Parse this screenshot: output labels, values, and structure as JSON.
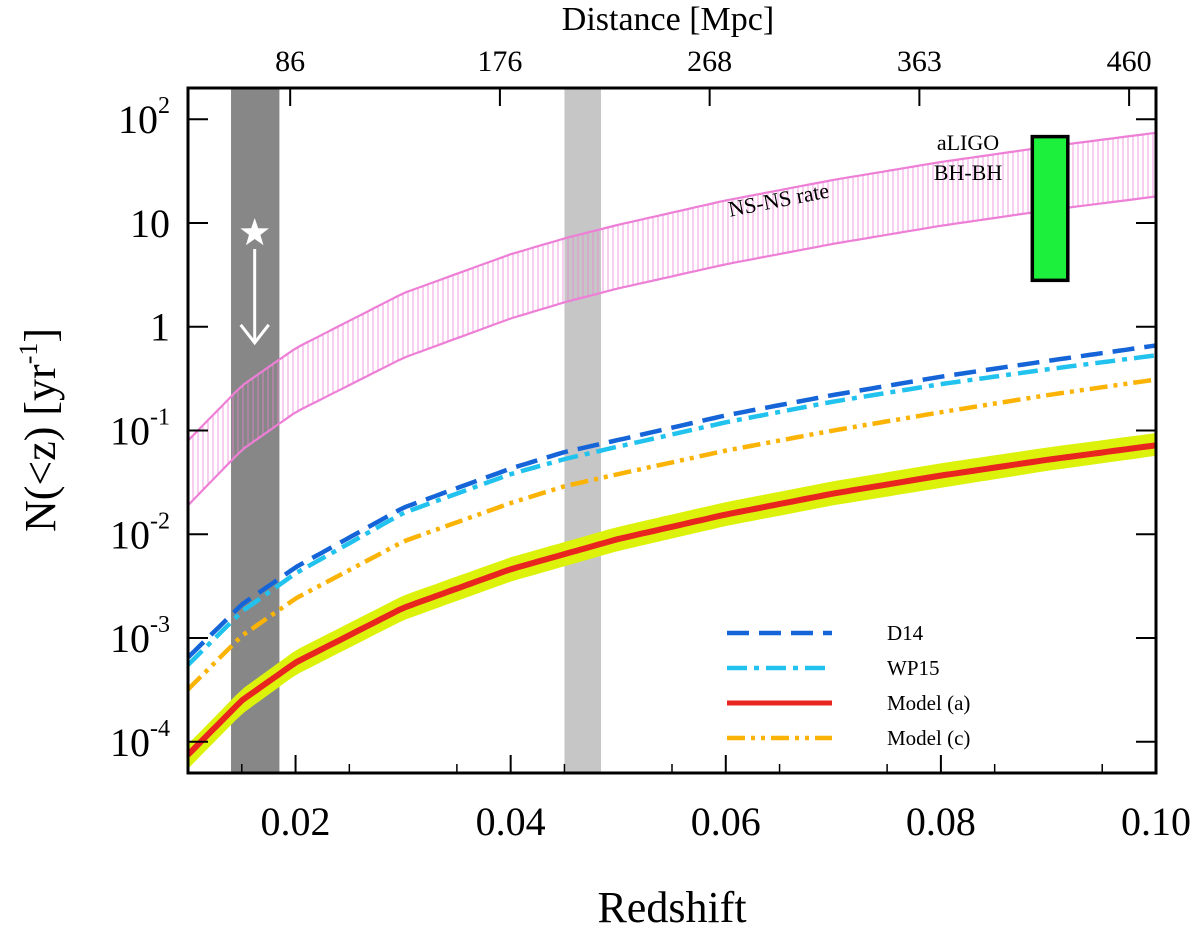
{
  "chart_data": {
    "type": "line",
    "xlabel": "Redshift",
    "ylabel": "N(<z) [yr",
    "ylabel_sup": "-1",
    "ylabel_close": "]",
    "top_xlabel": "Distance [Mpc]",
    "xlim": [
      0.01,
      0.1
    ],
    "ylim": [
      5e-05,
      200
    ],
    "y_scale": "log",
    "x_ticks": [
      {
        "value": 0.02,
        "label": "0.02"
      },
      {
        "value": 0.04,
        "label": "0.04"
      },
      {
        "value": 0.06,
        "label": "0.06"
      },
      {
        "value": 0.08,
        "label": "0.08"
      },
      {
        "value": 0.1,
        "label": "0.10"
      }
    ],
    "top_ticks": [
      {
        "z": 0.0195,
        "label": "86"
      },
      {
        "z": 0.039,
        "label": "176"
      },
      {
        "z": 0.0585,
        "label": "268"
      },
      {
        "z": 0.078,
        "label": "363"
      },
      {
        "z": 0.0975,
        "label": "460"
      }
    ],
    "y_ticks": [
      {
        "value": 0.0001,
        "base": "10",
        "exp": "-4"
      },
      {
        "value": 0.001,
        "base": "10",
        "exp": "-3"
      },
      {
        "value": 0.01,
        "base": "10",
        "exp": "-2"
      },
      {
        "value": 0.1,
        "base": "10",
        "exp": "-1"
      },
      {
        "value": 1,
        "base": "1",
        "exp": ""
      },
      {
        "value": 10,
        "base": "10",
        "exp": ""
      },
      {
        "value": 100,
        "base": "10",
        "exp": "2"
      }
    ],
    "shaded_regions": [
      {
        "x0": 0.014,
        "x1": 0.0185,
        "color": "#878787"
      },
      {
        "x0": 0.045,
        "x1": 0.0484,
        "color": "#c6c6c6"
      }
    ],
    "ns_ns_band": {
      "label": "NS-NS rate",
      "color": "#ee7fd6",
      "z": [
        0.01,
        0.015,
        0.02,
        0.03,
        0.04,
        0.045,
        0.05,
        0.06,
        0.07,
        0.08,
        0.09,
        0.1
      ],
      "lower": [
        0.019,
        0.065,
        0.15,
        0.5,
        1.2,
        1.72,
        2.34,
        4.0,
        6.3,
        9.4,
        13.3,
        18.0
      ],
      "upper": [
        0.08,
        0.27,
        0.62,
        2.1,
        5.0,
        7.1,
        9.6,
        16.5,
        26.0,
        38.7,
        54.5,
        74.0
      ]
    },
    "aligo": {
      "label_line1": "aLIGO",
      "label_line2": "BH-BH",
      "z0": 0.0885,
      "z1": 0.0918,
      "y0": 2.8,
      "y1": 68,
      "color": "#1cf03c"
    },
    "star_marker": {
      "z": 0.0162,
      "y": 8.0,
      "arrow_to_y": 0.7,
      "color": "#ffffff"
    },
    "model_a_band": {
      "color": "#dcf20b",
      "z": [
        0.01,
        0.015,
        0.02,
        0.03,
        0.04,
        0.05,
        0.06,
        0.07,
        0.08,
        0.09,
        0.1
      ],
      "lower": [
        5.5e-05,
        0.000185,
        0.00044,
        0.00148,
        0.0035,
        0.0069,
        0.012,
        0.019,
        0.028,
        0.041,
        0.057
      ],
      "upper": [
        9.5e-05,
        0.00032,
        0.00076,
        0.00256,
        0.006,
        0.0118,
        0.0204,
        0.0324,
        0.0483,
        0.0688,
        0.0945
      ]
    },
    "series": [
      {
        "name": "D14",
        "color": "#1565d9",
        "dash": "22,10",
        "z": [
          0.01,
          0.015,
          0.02,
          0.03,
          0.04,
          0.045,
          0.05,
          0.06,
          0.07,
          0.08,
          0.09,
          0.1
        ],
        "values": [
          0.00065,
          0.0021,
          0.0048,
          0.018,
          0.043,
          0.062,
          0.081,
          0.14,
          0.22,
          0.33,
          0.47,
          0.66
        ]
      },
      {
        "name": "WP15",
        "color": "#22c2ef",
        "dash": "20,7,5,7",
        "z": [
          0.01,
          0.015,
          0.02,
          0.03,
          0.04,
          0.045,
          0.05,
          0.06,
          0.07,
          0.08,
          0.09,
          0.1
        ],
        "values": [
          0.00055,
          0.0018,
          0.0042,
          0.016,
          0.038,
          0.053,
          0.07,
          0.12,
          0.19,
          0.28,
          0.39,
          0.53
        ]
      },
      {
        "name": "Model (a)",
        "color": "#e8251f",
        "dash": "",
        "z": [
          0.01,
          0.015,
          0.02,
          0.03,
          0.04,
          0.05,
          0.06,
          0.07,
          0.08,
          0.09,
          0.1
        ],
        "values": [
          7.5e-05,
          0.00025,
          0.00058,
          0.00195,
          0.0046,
          0.009,
          0.0155,
          0.0247,
          0.0368,
          0.0524,
          0.072
        ]
      },
      {
        "name": "Model (c)",
        "color": "#fbb406",
        "dash": "18,6,4,6,4,6",
        "z": [
          0.01,
          0.015,
          0.02,
          0.03,
          0.04,
          0.045,
          0.05,
          0.06,
          0.07,
          0.08,
          0.09,
          0.1
        ],
        "values": [
          0.00032,
          0.00105,
          0.0024,
          0.0085,
          0.02,
          0.029,
          0.038,
          0.064,
          0.1,
          0.15,
          0.22,
          0.31
        ]
      }
    ]
  }
}
